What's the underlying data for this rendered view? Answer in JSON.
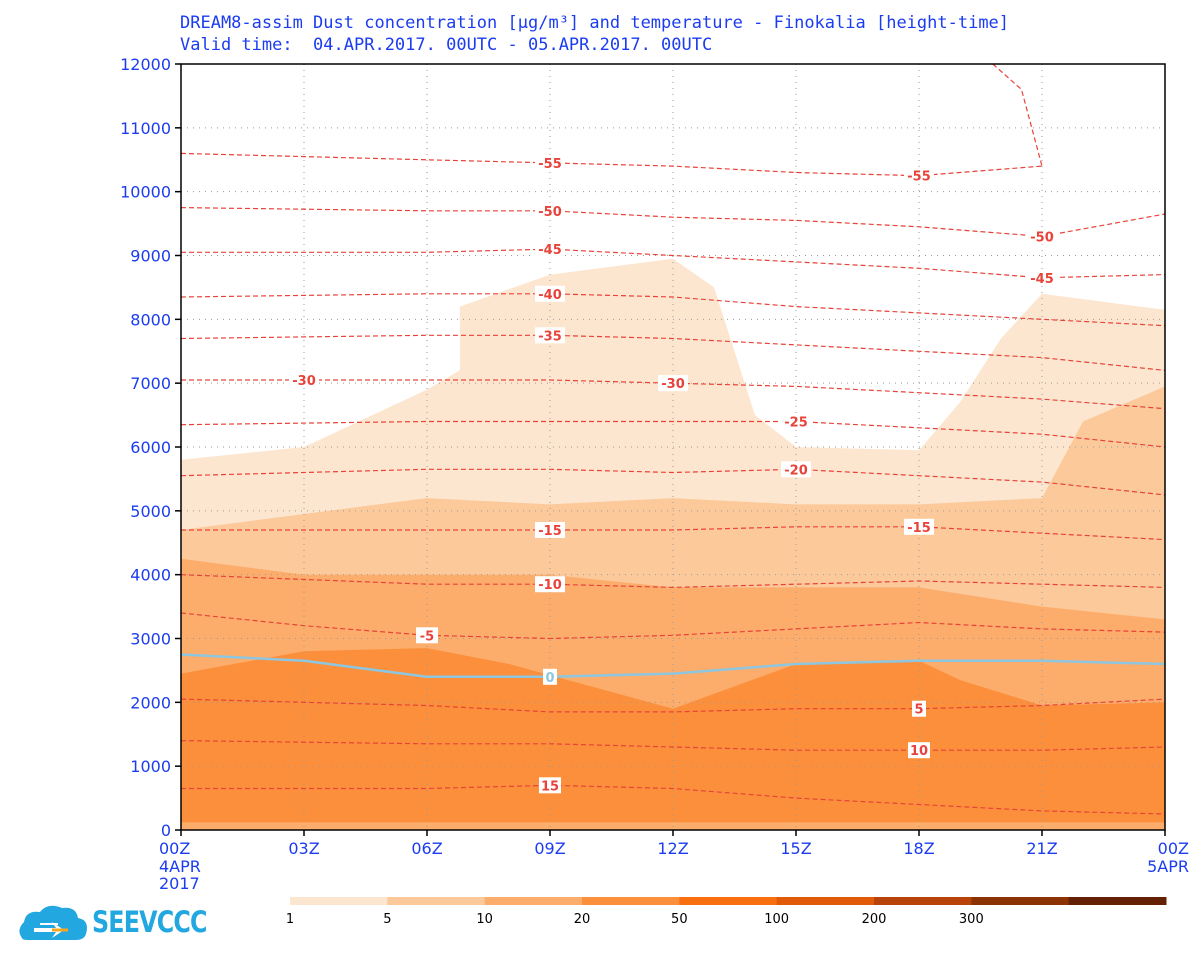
{
  "title_line1": "DREAM8-assim Dust concentration [μg/m³] and temperature - Finokalia [height-time]",
  "title_line2": "Valid time:  04.APR.2017. 00UTC - 05.APR.2017. 00UTC",
  "logo_text": "SEEVCCC",
  "colors": {
    "axis_text": "#1b3cf0",
    "temperature_contour": "#e8433a",
    "zero_isotherm": "#8ec6df",
    "shading": [
      "#fde6cf",
      "#fcc99b",
      "#fcad6b",
      "#fb8f3c",
      "#f96f10",
      "#e05a08",
      "#b84308",
      "#8c3305",
      "#632003"
    ]
  },
  "chart_data": {
    "type": "heatmap",
    "title": "DREAM8-assim Dust concentration [μg/m³] and temperature - Finokalia [height-time]",
    "subtitle": "Valid time:  04.APR.2017. 00UTC - 05.APR.2017. 00UTC",
    "x_ticks": [
      "00Z",
      "03Z",
      "06Z",
      "09Z",
      "12Z",
      "15Z",
      "18Z",
      "21Z",
      "00Z"
    ],
    "x_tick_sub": {
      "first": [
        "4APR",
        "2017"
      ],
      "last": [
        "5APR"
      ]
    },
    "x_hours": [
      0,
      3,
      6,
      9,
      12,
      15,
      18,
      21,
      24
    ],
    "y_ticks": [
      0,
      1000,
      2000,
      3000,
      4000,
      5000,
      6000,
      7000,
      8000,
      9000,
      10000,
      11000,
      12000
    ],
    "ylim": [
      0,
      12000
    ],
    "grid": true,
    "colorbar": {
      "levels": [
        "1",
        "5",
        "10",
        "20",
        "50",
        "100",
        "200",
        "300"
      ]
    },
    "dust_shading": [
      {
        "level": "1-5",
        "upper_boundary": [
          [
            0,
            5800
          ],
          [
            3,
            6000
          ],
          [
            6,
            6900
          ],
          [
            6.8,
            7200
          ],
          [
            6.8,
            8200
          ],
          [
            9,
            8700
          ],
          [
            12,
            8950
          ],
          [
            13,
            8500
          ],
          [
            14,
            6500
          ],
          [
            15,
            6000
          ],
          [
            18,
            5950
          ],
          [
            19,
            6700
          ],
          [
            20,
            7700
          ],
          [
            21,
            8400
          ],
          [
            24,
            8150
          ]
        ]
      },
      {
        "level": "5-10",
        "upper_boundary": [
          [
            0,
            4700
          ],
          [
            3,
            4950
          ],
          [
            6,
            5200
          ],
          [
            9,
            5100
          ],
          [
            12,
            5200
          ],
          [
            15,
            5100
          ],
          [
            18,
            5100
          ],
          [
            21,
            5200
          ],
          [
            22,
            6400
          ],
          [
            24,
            6950
          ]
        ]
      },
      {
        "level": "10-20",
        "upper_boundary": [
          [
            0,
            4250
          ],
          [
            3,
            4000
          ],
          [
            6,
            4000
          ],
          [
            9,
            4000
          ],
          [
            12,
            3800
          ],
          [
            15,
            3800
          ],
          [
            18,
            3800
          ],
          [
            21,
            3500
          ],
          [
            24,
            3300
          ]
        ]
      },
      {
        "level": "20-50",
        "upper_boundary": [
          [
            0,
            2450
          ],
          [
            3,
            2800
          ],
          [
            6,
            2850
          ],
          [
            8,
            2600
          ],
          [
            12,
            1900
          ],
          [
            15,
            2600
          ],
          [
            18,
            2650
          ],
          [
            19,
            2350
          ],
          [
            21,
            1950
          ],
          [
            24,
            2000
          ]
        ]
      }
    ],
    "temperature_contours": [
      {
        "label": "15",
        "label_at": 9,
        "height": [
          [
            0,
            650
          ],
          [
            6,
            650
          ],
          [
            9,
            700
          ],
          [
            12,
            650
          ],
          [
            15,
            500
          ],
          [
            18,
            400
          ],
          [
            21,
            300
          ],
          [
            24,
            250
          ]
        ]
      },
      {
        "label": "10",
        "label_at": 18,
        "height": [
          [
            0,
            1400
          ],
          [
            6,
            1350
          ],
          [
            9,
            1350
          ],
          [
            12,
            1300
          ],
          [
            15,
            1250
          ],
          [
            18,
            1250
          ],
          [
            21,
            1250
          ],
          [
            24,
            1300
          ]
        ]
      },
      {
        "label": "5",
        "label_at": 18,
        "height": [
          [
            0,
            2050
          ],
          [
            6,
            1950
          ],
          [
            9,
            1850
          ],
          [
            12,
            1850
          ],
          [
            15,
            1900
          ],
          [
            18,
            1900
          ],
          [
            21,
            1950
          ],
          [
            24,
            2050
          ]
        ]
      },
      {
        "label": "0",
        "label_at": 9,
        "zero": true,
        "height": [
          [
            0,
            2750
          ],
          [
            3,
            2650
          ],
          [
            6,
            2400
          ],
          [
            9,
            2400
          ],
          [
            12,
            2450
          ],
          [
            15,
            2600
          ],
          [
            18,
            2650
          ],
          [
            21,
            2650
          ],
          [
            24,
            2600
          ]
        ]
      },
      {
        "label": "-5",
        "label_at": 6,
        "height": [
          [
            0,
            3400
          ],
          [
            3,
            3200
          ],
          [
            6,
            3050
          ],
          [
            9,
            3000
          ],
          [
            12,
            3050
          ],
          [
            15,
            3150
          ],
          [
            18,
            3250
          ],
          [
            21,
            3150
          ],
          [
            24,
            3100
          ]
        ]
      },
      {
        "label": "-10",
        "label_at": 9,
        "height": [
          [
            0,
            4000
          ],
          [
            6,
            3850
          ],
          [
            9,
            3850
          ],
          [
            12,
            3800
          ],
          [
            15,
            3850
          ],
          [
            18,
            3900
          ],
          [
            21,
            3850
          ],
          [
            24,
            3800
          ]
        ]
      },
      {
        "label": "-15",
        "label_at": 9,
        "label_at2": 18,
        "height": [
          [
            0,
            4700
          ],
          [
            6,
            4700
          ],
          [
            9,
            4700
          ],
          [
            12,
            4700
          ],
          [
            15,
            4750
          ],
          [
            18,
            4750
          ],
          [
            21,
            4650
          ],
          [
            24,
            4550
          ]
        ]
      },
      {
        "label": "-20",
        "label_at": 15,
        "height": [
          [
            0,
            5550
          ],
          [
            6,
            5650
          ],
          [
            9,
            5650
          ],
          [
            12,
            5600
          ],
          [
            15,
            5650
          ],
          [
            18,
            5550
          ],
          [
            21,
            5450
          ],
          [
            24,
            5250
          ]
        ]
      },
      {
        "label": "-25",
        "label_at": 15,
        "height": [
          [
            0,
            6350
          ],
          [
            6,
            6400
          ],
          [
            9,
            6400
          ],
          [
            12,
            6400
          ],
          [
            15,
            6400
          ],
          [
            18,
            6300
          ],
          [
            21,
            6200
          ],
          [
            24,
            6000
          ]
        ]
      },
      {
        "label": "-30",
        "label_at": 3,
        "label_at2": 12,
        "height": [
          [
            0,
            7050
          ],
          [
            6,
            7050
          ],
          [
            9,
            7050
          ],
          [
            12,
            7000
          ],
          [
            15,
            6950
          ],
          [
            18,
            6850
          ],
          [
            21,
            6750
          ],
          [
            24,
            6600
          ]
        ]
      },
      {
        "label": "-35",
        "label_at": 9,
        "height": [
          [
            0,
            7700
          ],
          [
            6,
            7750
          ],
          [
            9,
            7750
          ],
          [
            12,
            7700
          ],
          [
            15,
            7600
          ],
          [
            18,
            7500
          ],
          [
            21,
            7400
          ],
          [
            24,
            7200
          ]
        ]
      },
      {
        "label": "-40",
        "label_at": 9,
        "height": [
          [
            0,
            8350
          ],
          [
            6,
            8400
          ],
          [
            9,
            8400
          ],
          [
            12,
            8350
          ],
          [
            15,
            8200
          ],
          [
            18,
            8100
          ],
          [
            21,
            8000
          ],
          [
            24,
            7900
          ]
        ]
      },
      {
        "label": "-45",
        "label_at": 9,
        "label_at2": 21,
        "height": [
          [
            0,
            9050
          ],
          [
            6,
            9050
          ],
          [
            9,
            9100
          ],
          [
            12,
            9000
          ],
          [
            15,
            8900
          ],
          [
            18,
            8800
          ],
          [
            21,
            8650
          ],
          [
            24,
            8700
          ]
        ]
      },
      {
        "label": "-50",
        "label_at": 9,
        "label_at2": 21,
        "height": [
          [
            0,
            9750
          ],
          [
            6,
            9700
          ],
          [
            9,
            9700
          ],
          [
            12,
            9600
          ],
          [
            15,
            9550
          ],
          [
            18,
            9450
          ],
          [
            21,
            9300
          ],
          [
            24,
            9650
          ]
        ]
      },
      {
        "label": "-55",
        "label_at": 9,
        "label_at2": 18,
        "height": [
          [
            0,
            10600
          ],
          [
            6,
            10500
          ],
          [
            9,
            10450
          ],
          [
            12,
            10400
          ],
          [
            15,
            10300
          ],
          [
            18,
            10250
          ],
          [
            21,
            10400
          ]
        ]
      },
      {
        "label": "",
        "height": [
          [
            19.8,
            12000
          ],
          [
            20.5,
            11600
          ],
          [
            21,
            10400
          ]
        ]
      }
    ]
  }
}
